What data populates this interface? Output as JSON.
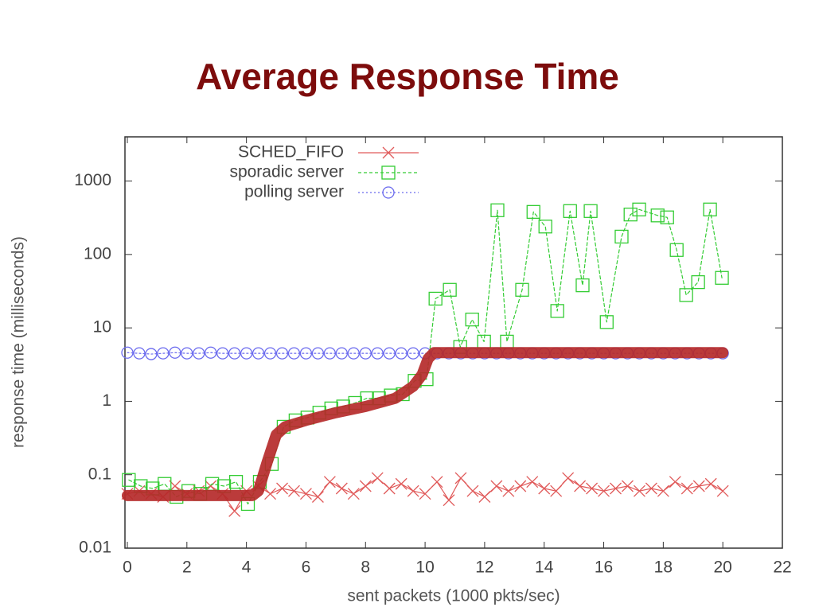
{
  "chart_data": {
    "type": "line",
    "title": "Average Response Time",
    "xlabel": "sent packets (1000 pkts/sec)",
    "ylabel": "response time (milliseconds)",
    "xlim": [
      0,
      22
    ],
    "xticks": [
      0,
      2,
      4,
      6,
      8,
      10,
      12,
      14,
      16,
      18,
      20,
      22
    ],
    "ylim": [
      0.01,
      4000
    ],
    "yticks": [
      0.01,
      0.1,
      1,
      10,
      100,
      1000
    ],
    "ylog": true,
    "legend": "top-left",
    "series": [
      {
        "name": "SCHED_FIFO",
        "color": "#e05a5a",
        "marker": "x",
        "dash": "none",
        "x": [
          0,
          0.4,
          0.8,
          1.2,
          1.6,
          2,
          2.4,
          2.8,
          3.2,
          3.6,
          4,
          4.4,
          4.8,
          5.2,
          5.6,
          6,
          6.4,
          6.8,
          7.2,
          7.6,
          8,
          8.4,
          8.8,
          9.2,
          9.6,
          10,
          10.4,
          10.8,
          11.2,
          11.6,
          12,
          12.4,
          12.8,
          13.2,
          13.6,
          14,
          14.4,
          14.8,
          15.2,
          15.6,
          16,
          16.4,
          16.8,
          17.2,
          17.6,
          18,
          18.4,
          18.8,
          19.2,
          19.6,
          20
        ],
        "values": [
          0.055,
          0.06,
          0.055,
          0.05,
          0.07,
          0.055,
          0.06,
          0.07,
          0.055,
          0.032,
          0.06,
          0.07,
          0.055,
          0.065,
          0.06,
          0.055,
          0.05,
          0.08,
          0.065,
          0.055,
          0.07,
          0.09,
          0.065,
          0.075,
          0.06,
          0.055,
          0.08,
          0.045,
          0.09,
          0.06,
          0.05,
          0.07,
          0.06,
          0.07,
          0.08,
          0.065,
          0.06,
          0.09,
          0.07,
          0.065,
          0.06,
          0.065,
          0.07,
          0.06,
          0.065,
          0.06,
          0.08,
          0.065,
          0.07,
          0.075,
          0.06
        ]
      },
      {
        "name": "sporadic server",
        "color": "#33cc33",
        "marker": "square",
        "dash": "4,3",
        "x": [
          0.05,
          0.45,
          0.85,
          1.25,
          1.65,
          2.05,
          2.45,
          2.85,
          3.25,
          3.65,
          4.05,
          4.45,
          4.85,
          5.25,
          5.65,
          6.05,
          6.45,
          6.85,
          7.25,
          7.65,
          8.05,
          8.45,
          8.85,
          9.25,
          9.65,
          10.05,
          10.35,
          10.83,
          11.18,
          11.58,
          11.98,
          12.43,
          12.75,
          13.26,
          13.64,
          14.04,
          14.44,
          14.87,
          15.29,
          15.56,
          16.1,
          16.6,
          16.9,
          17.19,
          17.81,
          18.13,
          18.45,
          18.77,
          19.17,
          19.57,
          19.97
        ],
        "values": [
          0.085,
          0.07,
          0.065,
          0.075,
          0.05,
          0.06,
          0.055,
          0.075,
          0.07,
          0.08,
          0.04,
          0.08,
          0.14,
          0.45,
          0.55,
          0.6,
          0.7,
          0.8,
          0.85,
          0.95,
          1.1,
          1.1,
          1.2,
          1.25,
          1.9,
          2.0,
          25,
          33,
          5.5,
          13,
          6.5,
          400,
          6.5,
          33,
          380,
          240,
          17,
          390,
          38,
          390,
          12,
          175,
          350,
          410,
          340,
          320,
          115,
          28,
          42,
          410,
          48
        ]
      },
      {
        "name": "polling server",
        "color": "#6a6aee",
        "marker": "circle",
        "dash": "2,3",
        "x": [
          0,
          0.4,
          0.8,
          1.2,
          1.6,
          2,
          2.4,
          2.8,
          3.2,
          3.6,
          4,
          4.4,
          4.8,
          5.2,
          5.6,
          6,
          6.4,
          6.8,
          7.2,
          7.6,
          8,
          8.4,
          8.8,
          9.2,
          9.6,
          10,
          10.4,
          10.8,
          11.2,
          11.6,
          12,
          12.4,
          12.8,
          13.2,
          13.6,
          14,
          14.4,
          14.8,
          15.2,
          15.6,
          16,
          16.4,
          16.8,
          17.2,
          17.6,
          18,
          18.4,
          18.8,
          19.2,
          19.6,
          20
        ],
        "values": [
          4.6,
          4.5,
          4.4,
          4.5,
          4.6,
          4.5,
          4.5,
          4.6,
          4.5,
          4.5,
          4.5,
          4.5,
          4.5,
          4.5,
          4.5,
          4.5,
          4.5,
          4.5,
          4.5,
          4.5,
          4.5,
          4.5,
          4.5,
          4.5,
          4.5,
          4.5,
          4.5,
          4.5,
          4.5,
          4.5,
          4.5,
          4.5,
          4.5,
          4.5,
          4.5,
          4.5,
          4.5,
          4.5,
          4.5,
          4.5,
          4.5,
          4.5,
          4.5,
          4.5,
          4.5,
          4.5,
          4.5,
          4.5,
          4.5,
          4.5,
          4.5
        ]
      },
      {
        "color": "#b52a2a",
        "marker": "none",
        "dash": "none",
        "width": 14,
        "x": [
          0,
          4.2,
          4.4,
          4.7,
          5,
          5.3,
          6,
          7,
          8,
          9,
          9.6,
          9.9,
          10.1,
          10.3,
          20
        ],
        "values": [
          0.052,
          0.052,
          0.06,
          0.15,
          0.35,
          0.45,
          0.55,
          0.7,
          0.85,
          1.1,
          1.6,
          2.3,
          3.8,
          4.6,
          4.6
        ]
      }
    ]
  }
}
